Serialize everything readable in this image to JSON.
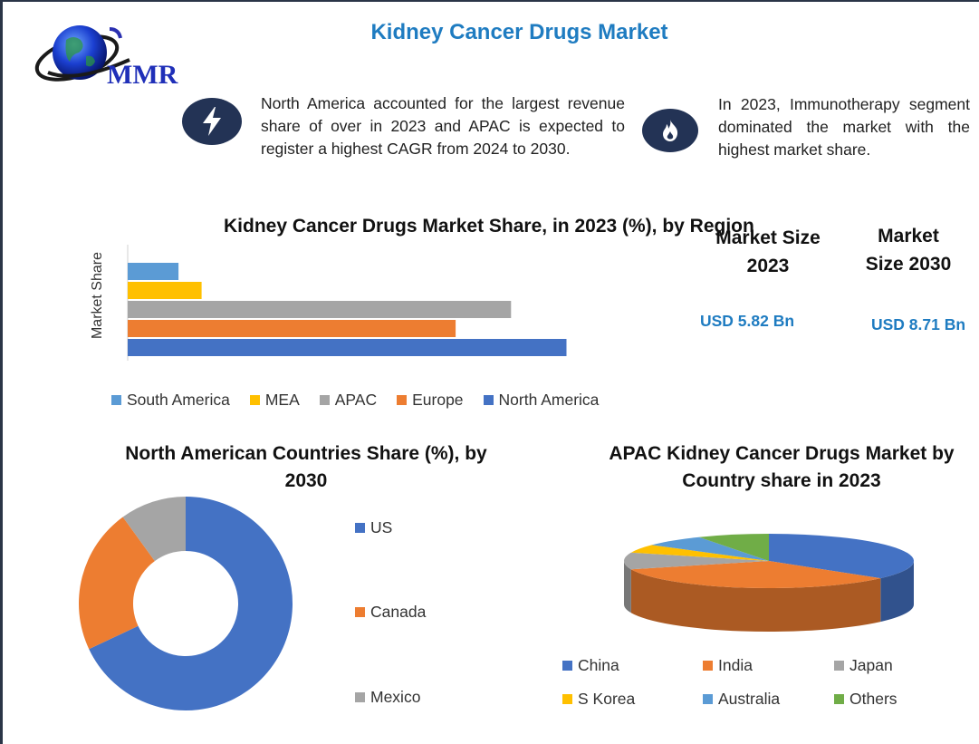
{
  "header": {
    "title": "Kidney Cancer Drugs Market",
    "logo_text": "MMR"
  },
  "info": [
    {
      "icon": "lightning-icon",
      "text": "North America accounted for the largest revenue share of over in 2023 and APAC is expected to register a highest CAGR from 2024 to 2030."
    },
    {
      "icon": "flame-icon",
      "text": "In 2023, Immunotherapy segment dominated the market with the highest market share."
    }
  ],
  "market_size": {
    "label_2023": "Market Size 2023",
    "value_2023": "USD 5.82 Bn",
    "label_2030": "Market Size 2030",
    "value_2030": "USD 8.71 Bn"
  },
  "colors": {
    "south_america": "#5b9bd5",
    "mea": "#ffc000",
    "apac": "#a5a5a5",
    "europe": "#ed7d31",
    "north_america": "#4472c4",
    "others": "#70ad47",
    "accent": "#1f7cc1",
    "icon_bg": "#233355"
  },
  "chart_data": [
    {
      "type": "bar",
      "orientation": "horizontal",
      "title": "Kidney Cancer Drugs Market Share, in 2023 (%), by Region",
      "ylabel": "Market Share",
      "categories": [
        "South America",
        "MEA",
        "APAC",
        "Europe",
        "North America"
      ],
      "values": [
        5.5,
        8,
        41.5,
        35.5,
        47.5
      ],
      "legend_position": "bottom",
      "grid": false
    },
    {
      "type": "pie",
      "variant": "donut",
      "title": "North American Countries Share (%), by 2030",
      "categories": [
        "US",
        "Canada",
        "Mexico"
      ],
      "values": [
        68,
        22,
        10
      ],
      "legend_position": "right"
    },
    {
      "type": "pie",
      "variant": "3d",
      "title": "APAC  Kidney Cancer Drugs Market by Country share in 2023",
      "categories": [
        "China",
        "India",
        "Japan",
        "S Korea",
        "Australia",
        "Others"
      ],
      "values": [
        36,
        34,
        10,
        5,
        7,
        8
      ],
      "legend_position": "bottom"
    }
  ]
}
